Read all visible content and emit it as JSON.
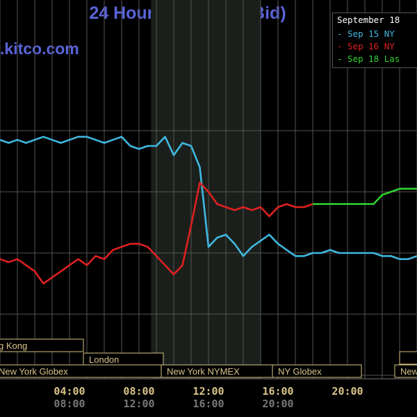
{
  "header": {
    "title": "24 Hour Spot Gold (Bid)",
    "site": "kitco.com"
  },
  "legend": {
    "header": "September 18",
    "items": [
      {
        "label": "- Sep 15 NY",
        "color": "#3fb8e0"
      },
      {
        "label": "- Sep 16 NY",
        "color": "#e02020"
      },
      {
        "label": "- Sep 18 Las",
        "color": "#30d030"
      }
    ]
  },
  "sessions": {
    "row1": [
      "g Kong",
      "London"
    ],
    "row2": [
      "New York Globex",
      "New York NYMEX",
      "NY Globex",
      "New"
    ]
  },
  "colors": {
    "background": "#000000",
    "grid": "#555555",
    "session_text": "#d9c489",
    "overnight_shade": "#1b1f1b"
  },
  "chart_data": {
    "type": "line",
    "title": "24 Hour Spot Gold (Bid)",
    "xlabel": "",
    "ylabel": "",
    "x_ticks_primary": [
      "04:00",
      "08:00",
      "12:00",
      "16:00",
      "20:00"
    ],
    "x_ticks_secondary": [
      "08:00",
      "12:00",
      "16:00",
      "20:00"
    ],
    "xlim": [
      0,
      24
    ],
    "ylim": [
      0,
      10
    ],
    "grid": true,
    "legend_position": "top-right",
    "series": [
      {
        "name": "Sep 15 NY",
        "color": "#3fb8e0",
        "x": [
          0,
          0.5,
          1,
          1.5,
          2,
          2.5,
          3,
          3.5,
          4,
          4.5,
          5,
          5.5,
          6,
          6.5,
          7,
          7.5,
          8,
          8.5,
          9,
          9.5,
          10,
          10.5,
          11,
          11.5,
          12,
          12.5,
          13,
          13.5,
          14,
          14.5,
          15,
          15.5,
          16,
          16.5,
          17,
          17.5,
          18,
          18.5,
          19,
          19.5,
          20,
          20.5,
          21,
          21.5,
          22,
          22.5,
          23,
          23.5,
          24
        ],
        "y": [
          7.7,
          7.6,
          7.7,
          7.6,
          7.7,
          7.8,
          7.7,
          7.6,
          7.7,
          7.8,
          7.8,
          7.7,
          7.6,
          7.7,
          7.8,
          7.5,
          7.4,
          7.5,
          7.5,
          7.8,
          7.2,
          7.6,
          7.5,
          6.8,
          4.2,
          4.5,
          4.6,
          4.3,
          3.9,
          4.2,
          4.4,
          4.6,
          4.3,
          4.1,
          3.9,
          3.9,
          4.0,
          4.0,
          4.1,
          4.0,
          4.0,
          4.0,
          4.0,
          4.0,
          3.9,
          3.9,
          3.8,
          3.8,
          3.9
        ]
      },
      {
        "name": "Sep 16 NY",
        "color": "#e02020",
        "x": [
          0,
          0.5,
          1,
          1.5,
          2,
          2.5,
          3,
          3.5,
          4,
          4.5,
          5,
          5.5,
          6,
          6.5,
          7,
          7.5,
          8,
          8.5,
          9,
          9.5,
          10,
          10.5,
          11,
          11.5,
          12,
          12.5,
          13,
          13.5,
          14,
          14.5,
          15,
          15.5,
          16,
          16.5,
          17,
          17.5,
          18
        ],
        "y": [
          3.8,
          3.7,
          3.8,
          3.6,
          3.4,
          3.0,
          3.2,
          3.4,
          3.6,
          3.8,
          3.6,
          3.9,
          3.8,
          4.1,
          4.2,
          4.3,
          4.3,
          4.2,
          3.9,
          3.6,
          3.3,
          3.6,
          4.9,
          6.3,
          6.0,
          5.6,
          5.5,
          5.4,
          5.5,
          5.4,
          5.5,
          5.2,
          5.5,
          5.6,
          5.5,
          5.5,
          5.6
        ]
      },
      {
        "name": "Sep 18 Las",
        "color": "#30d030",
        "x": [
          18,
          18.5,
          19,
          19.5,
          20,
          20.5,
          21,
          21.5,
          22,
          22.5,
          23,
          23.5,
          24
        ],
        "y": [
          5.6,
          5.6,
          5.6,
          5.6,
          5.6,
          5.6,
          5.6,
          5.6,
          5.9,
          6.0,
          6.1,
          6.1,
          6.1
        ]
      }
    ]
  }
}
